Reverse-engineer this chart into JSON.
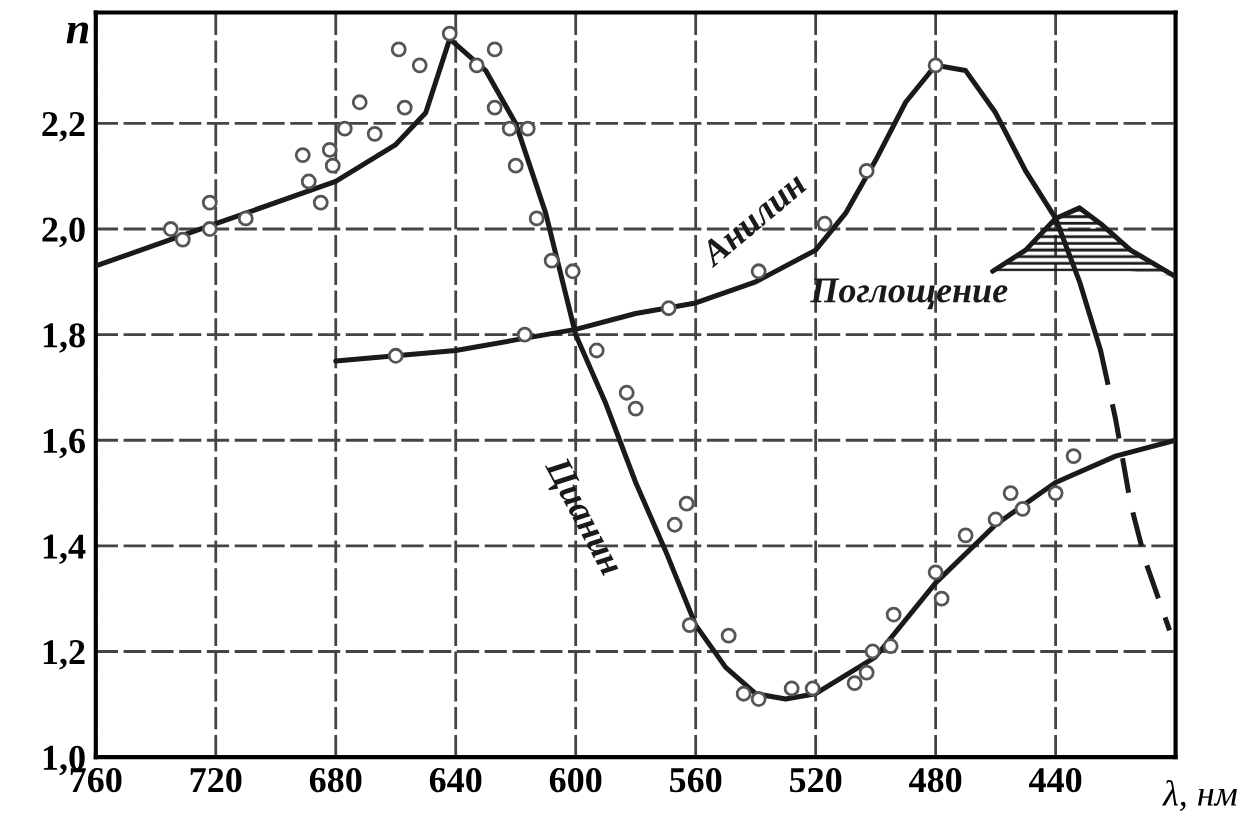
{
  "chart_data": {
    "type": "line",
    "xlabel": "λ, нм",
    "ylabel": "n",
    "xlim": [
      760,
      400
    ],
    "ylim": [
      1.0,
      2.41
    ],
    "xticks": [
      760,
      720,
      680,
      640,
      600,
      560,
      520,
      480,
      440
    ],
    "yticks": [
      {
        "value": 1.0,
        "label": "1,0"
      },
      {
        "value": 1.2,
        "label": "1,2"
      },
      {
        "value": 1.4,
        "label": "1,4"
      },
      {
        "value": 1.6,
        "label": "1,6"
      },
      {
        "value": 1.8,
        "label": "1,8"
      },
      {
        "value": 2.0,
        "label": "2,0"
      },
      {
        "value": 2.2,
        "label": "2,2"
      }
    ],
    "grid": true,
    "series": [
      {
        "name": "Цианин",
        "color": "#1a1a1a",
        "line_style": "solid",
        "x": [
          760,
          720,
          680,
          660,
          650,
          642,
          630,
          620,
          610,
          600,
          590,
          580,
          570,
          560,
          550,
          540,
          530,
          520,
          500,
          480,
          460,
          440,
          420,
          400
        ],
        "values": [
          1.93,
          2.01,
          2.09,
          2.16,
          2.22,
          2.36,
          2.3,
          2.2,
          2.03,
          1.8,
          1.67,
          1.52,
          1.39,
          1.25,
          1.17,
          1.12,
          1.11,
          1.12,
          1.19,
          1.33,
          1.44,
          1.52,
          1.57,
          1.6
        ]
      },
      {
        "name": "Анилин",
        "color": "#1a1a1a",
        "line_style": "solid",
        "x": [
          680,
          640,
          620,
          600,
          580,
          560,
          540,
          520,
          510,
          500,
          490,
          480,
          470,
          460,
          450,
          440,
          432,
          425
        ],
        "values": [
          1.75,
          1.77,
          1.79,
          1.81,
          1.84,
          1.86,
          1.9,
          1.96,
          2.03,
          2.13,
          2.24,
          2.31,
          2.3,
          2.22,
          2.11,
          2.02,
          1.9,
          1.77
        ]
      },
      {
        "color": "#1a1a1a",
        "line_style": "dashed",
        "x": [
          425,
          420,
          415,
          410,
          402
        ],
        "values": [
          1.77,
          1.64,
          1.48,
          1.37,
          1.24
        ]
      },
      {
        "name": "Поглощение",
        "color": "#1a1a1a",
        "line_style": "solid",
        "x": [
          461,
          450,
          440,
          432,
          425,
          415,
          400
        ],
        "values": [
          1.92,
          1.96,
          2.02,
          2.04,
          2.01,
          1.96,
          1.91
        ],
        "lower": [
          1.92,
          1.92,
          1.92,
          1.92,
          1.92,
          1.92,
          1.91
        ],
        "upper": [
          1.92,
          1.96,
          2.02,
          2.04,
          2.01,
          1.96,
          1.91
        ]
      },
      {
        "type": "scatter",
        "color": "#555555",
        "marker": "circle",
        "x": [
          735,
          731,
          722,
          722,
          710,
          691,
          689,
          685,
          682,
          681,
          677,
          667,
          672,
          657,
          659,
          652,
          642,
          633,
          627,
          627,
          622,
          616,
          620,
          613,
          608,
          601,
          593,
          583,
          580,
          563,
          567,
          562,
          549,
          544,
          539,
          528,
          521,
          507,
          503,
          501,
          495,
          494,
          480,
          478,
          470,
          460,
          455,
          451,
          440,
          434
        ],
        "values": [
          2.0,
          1.98,
          2.05,
          2.0,
          2.02,
          2.14,
          2.09,
          2.05,
          2.15,
          2.12,
          2.19,
          2.18,
          2.24,
          2.23,
          2.34,
          2.31,
          2.37,
          2.31,
          2.34,
          2.23,
          2.19,
          2.19,
          2.12,
          2.02,
          1.94,
          1.92,
          1.77,
          1.69,
          1.66,
          1.48,
          1.44,
          1.25,
          1.23,
          1.12,
          1.11,
          1.13,
          1.13,
          1.14,
          1.16,
          1.2,
          1.21,
          1.27,
          1.35,
          1.3,
          1.42,
          1.45,
          1.5,
          1.47,
          1.5,
          1.57
        ]
      },
      {
        "type": "scatter",
        "color": "#555555",
        "marker": "circle",
        "x": [
          660,
          617,
          569,
          539,
          517,
          503,
          480
        ],
        "values": [
          1.76,
          1.8,
          1.85,
          1.92,
          2.01,
          2.11,
          2.31
        ]
      }
    ]
  }
}
